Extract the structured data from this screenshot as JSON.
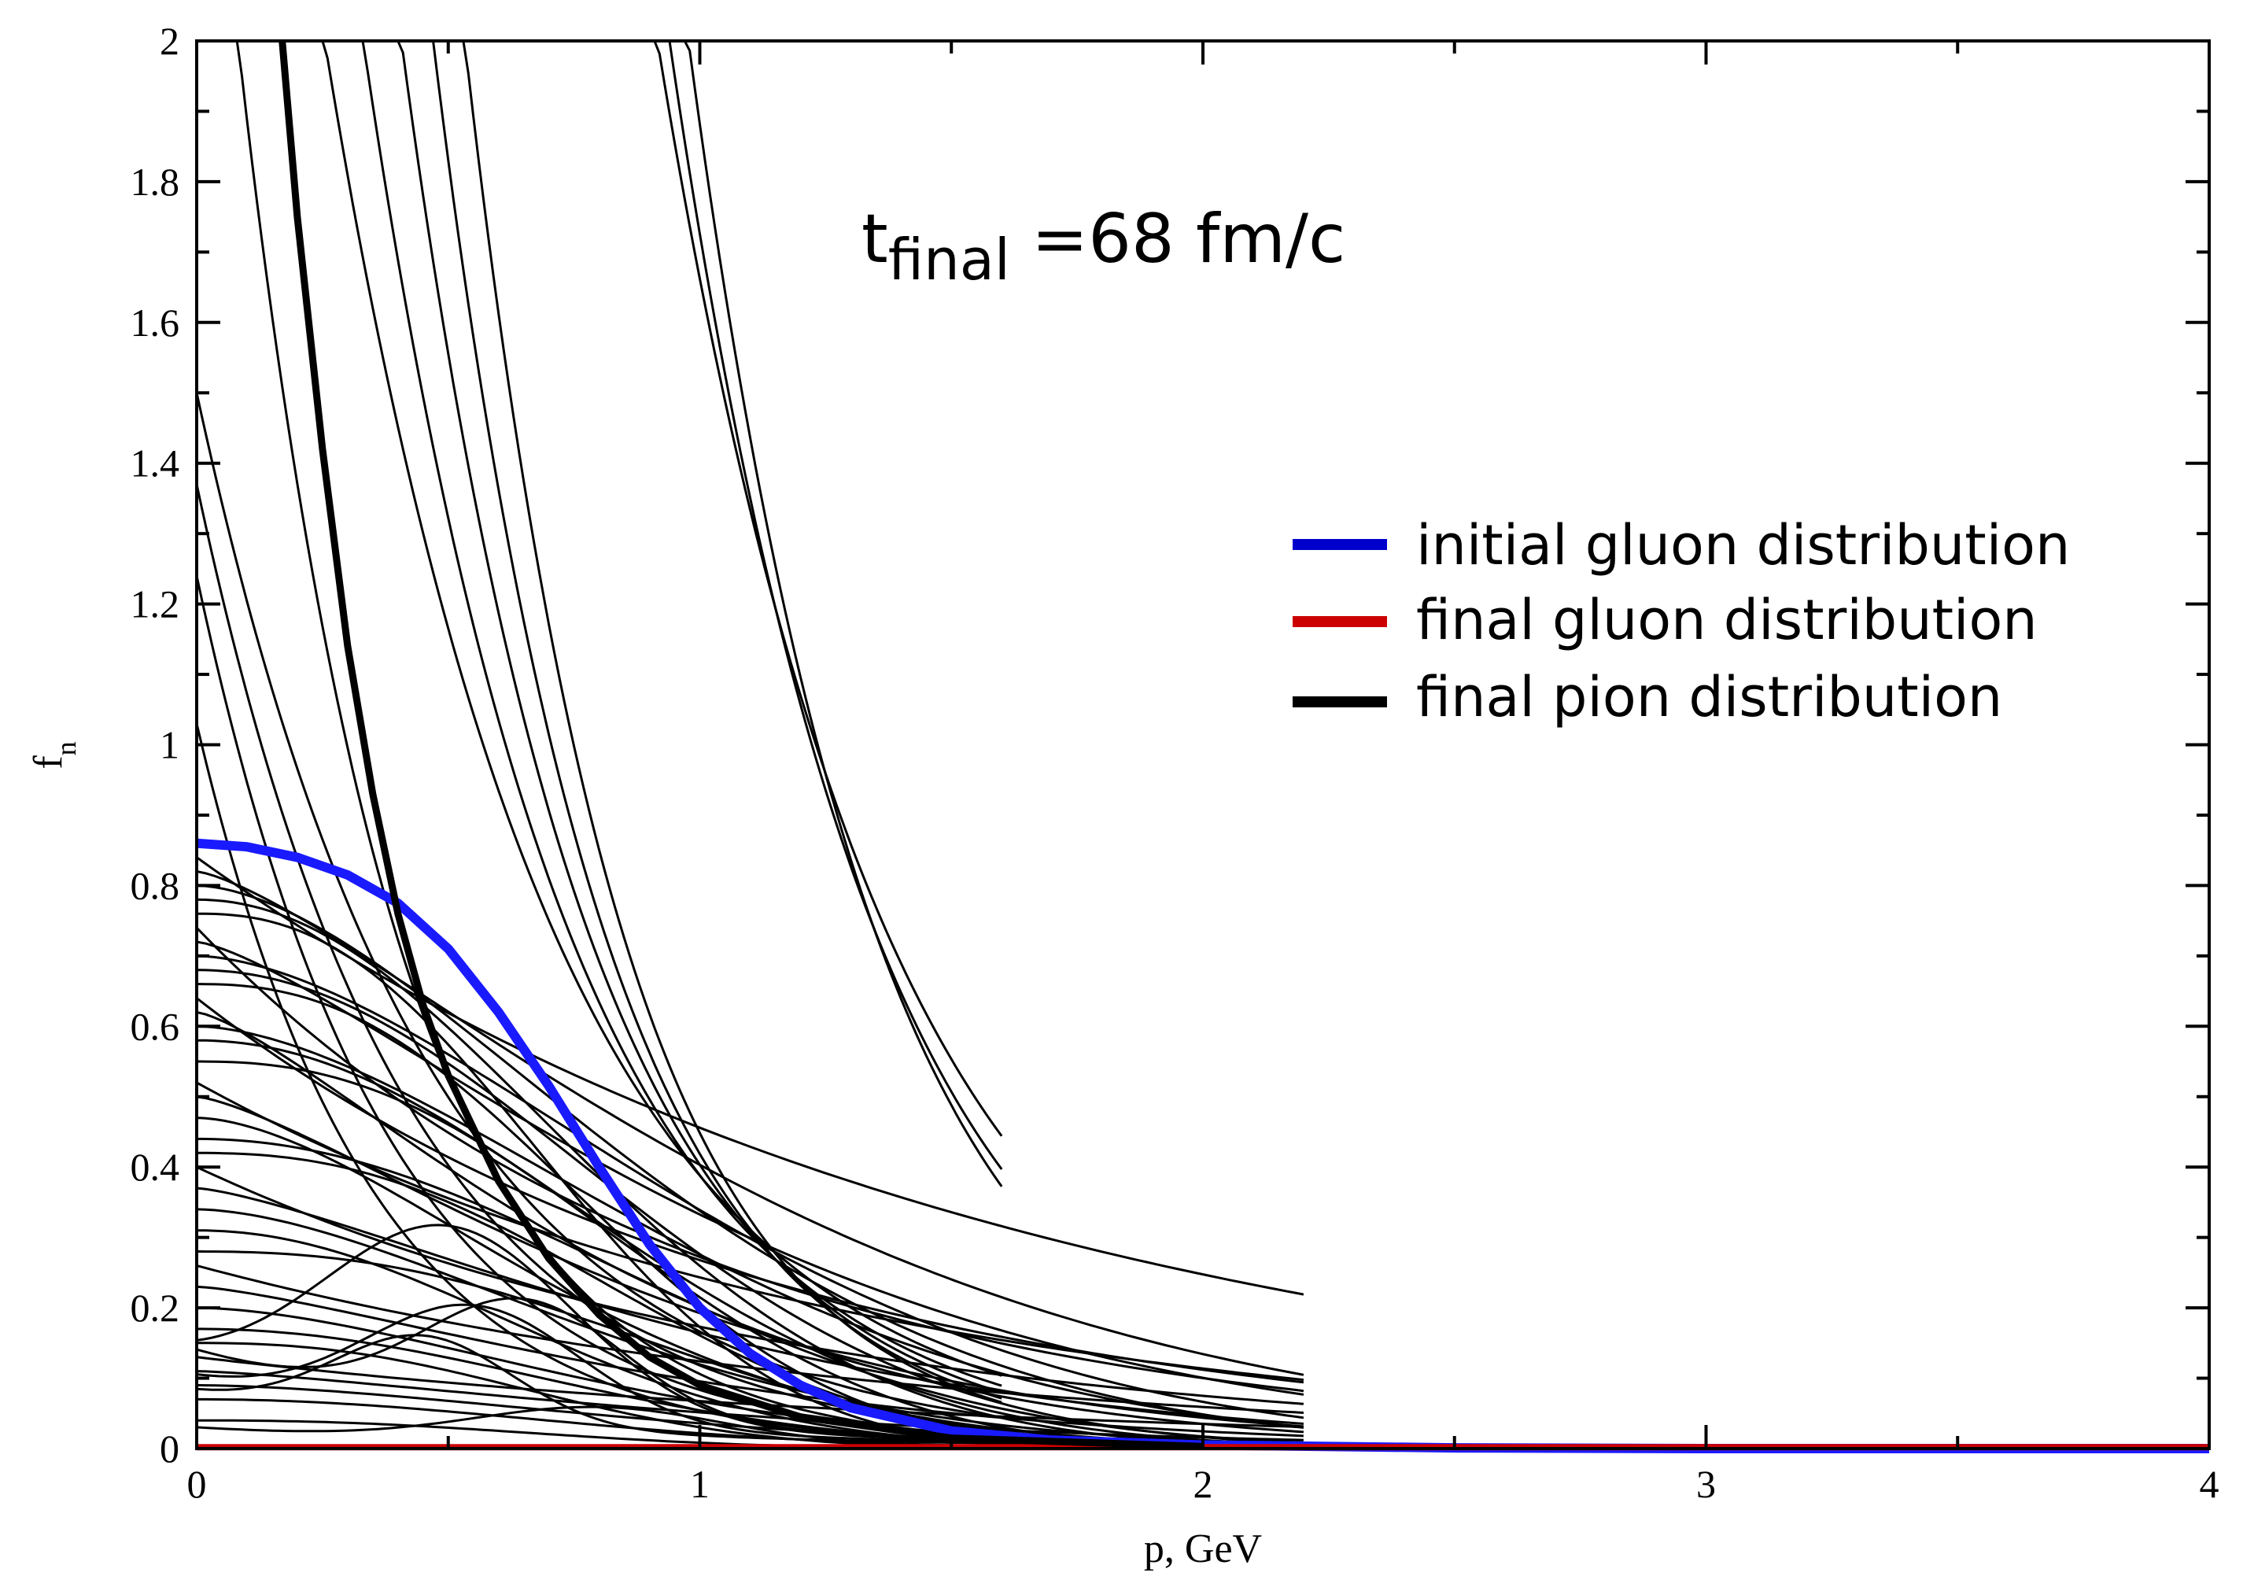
{
  "chart_data": {
    "type": "line",
    "title": "",
    "xlabel": "p, GeV",
    "ylabel_main": "f",
    "ylabel_sub": "n",
    "xlim": [
      0,
      4
    ],
    "ylim": [
      0,
      2
    ],
    "x_ticks": [
      "0",
      "1",
      "2",
      "3",
      "4"
    ],
    "y_ticks": [
      "0",
      "0.2",
      "0.4",
      "0.6",
      "0.8",
      "1",
      "1.2",
      "1.4",
      "1.6",
      "1.8",
      "2"
    ],
    "annotation": {
      "main": "t",
      "sub": "final",
      "rest": " =68 fm/c"
    },
    "legend": [
      {
        "label": "initial gluon distribution",
        "color": "#0000cc"
      },
      {
        "label": "final gluon distribution",
        "color": "#cc0000"
      },
      {
        "label": "final pion distribution",
        "color": "#000000"
      }
    ],
    "series": [
      {
        "name": "initial gluon distribution",
        "color": "#1a1aff",
        "x": [
          0,
          0.1,
          0.2,
          0.3,
          0.4,
          0.5,
          0.6,
          0.7,
          0.8,
          0.9,
          1.0,
          1.1,
          1.2,
          1.3,
          1.5,
          1.7,
          2.0,
          2.5,
          3.0,
          4.0
        ],
        "y": [
          0.86,
          0.855,
          0.84,
          0.815,
          0.775,
          0.71,
          0.62,
          0.515,
          0.4,
          0.29,
          0.2,
          0.135,
          0.09,
          0.058,
          0.025,
          0.012,
          0.005,
          0.001,
          0.0,
          0.0
        ]
      },
      {
        "name": "final gluon distribution",
        "color": "#cc0000",
        "x": [
          0,
          1,
          2,
          3,
          4
        ],
        "y": [
          0.002,
          0.002,
          0.002,
          0.002,
          0.002
        ]
      },
      {
        "name": "final pion distribution",
        "color": "#000000",
        "x": [
          0.17,
          0.2,
          0.25,
          0.3,
          0.35,
          0.4,
          0.45,
          0.5,
          0.6,
          0.7,
          0.8,
          0.9,
          1.0,
          1.2,
          1.5,
          2.0
        ],
        "y": [
          2.0,
          1.75,
          1.42,
          1.14,
          0.93,
          0.76,
          0.63,
          0.53,
          0.38,
          0.27,
          0.19,
          0.13,
          0.09,
          0.045,
          0.015,
          0.003
        ]
      }
    ]
  }
}
